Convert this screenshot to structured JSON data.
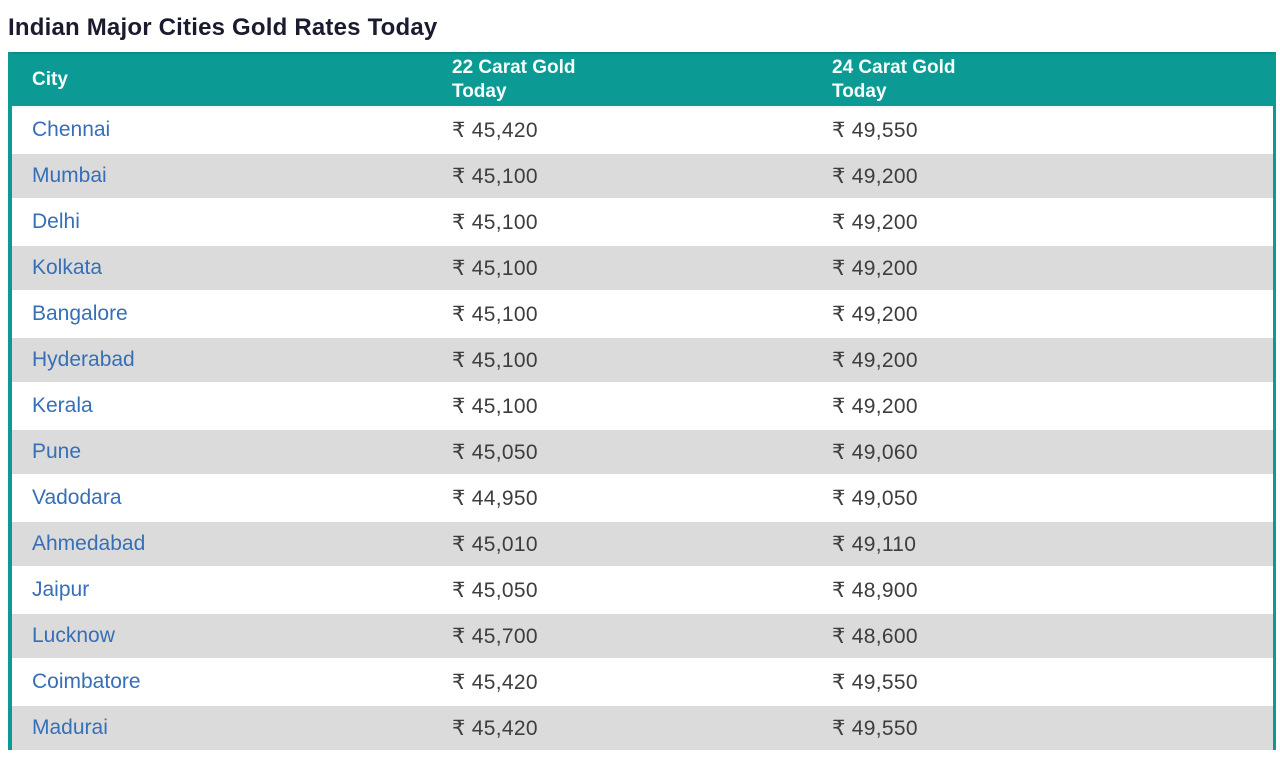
{
  "page": {
    "title": "Indian Major Cities Gold Rates Today"
  },
  "table": {
    "columns": [
      {
        "label": "City"
      },
      {
        "label": "22 Carat Gold\nToday"
      },
      {
        "label": "24 Carat Gold\nToday"
      }
    ],
    "currency_symbol": "₹",
    "rows": [
      {
        "city": "Chennai",
        "carat22": "₹ 45,420",
        "carat24": "₹ 49,550"
      },
      {
        "city": "Mumbai",
        "carat22": "₹ 45,100",
        "carat24": "₹ 49,200"
      },
      {
        "city": "Delhi",
        "carat22": "₹ 45,100",
        "carat24": "₹ 49,200"
      },
      {
        "city": "Kolkata",
        "carat22": "₹ 45,100",
        "carat24": "₹ 49,200"
      },
      {
        "city": "Bangalore",
        "carat22": "₹ 45,100",
        "carat24": "₹ 49,200"
      },
      {
        "city": "Hyderabad",
        "carat22": "₹ 45,100",
        "carat24": "₹ 49,200"
      },
      {
        "city": "Kerala",
        "carat22": "₹ 45,100",
        "carat24": "₹ 49,200"
      },
      {
        "city": "Pune",
        "carat22": "₹ 45,050",
        "carat24": "₹ 49,060"
      },
      {
        "city": "Vadodara",
        "carat22": "₹ 44,950",
        "carat24": "₹ 49,050"
      },
      {
        "city": "Ahmedabad",
        "carat22": "₹ 45,010",
        "carat24": "₹ 49,110"
      },
      {
        "city": "Jaipur",
        "carat22": "₹ 45,050",
        "carat24": "₹ 48,900"
      },
      {
        "city": "Lucknow",
        "carat22": "₹ 45,700",
        "carat24": "₹ 48,600"
      },
      {
        "city": "Coimbatore",
        "carat22": "₹ 45,420",
        "carat24": "₹ 49,550"
      },
      {
        "city": "Madurai",
        "carat22": "₹ 45,420",
        "carat24": "₹ 49,550"
      }
    ]
  },
  "colors": {
    "header_bg": "#0b9b94",
    "header_text": "#f6fdfc",
    "row_alt_bg": "#dbdbdb",
    "link": "#366fb8",
    "value_text": "#3d3d3d",
    "title_text": "#1b1b2f"
  }
}
